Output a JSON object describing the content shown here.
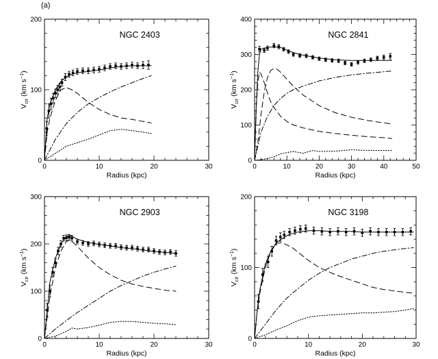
{
  "figure_label": "(a)",
  "colors": {
    "ink": "#000000",
    "background": "#ffffff"
  },
  "chart_data": [
    {
      "type": "line",
      "title": "NGC 2403",
      "xlabel": "Radius  (kpc)",
      "ylabel": "V",
      "ylabel_sub": "cir",
      "ylabel_unit": "(km s",
      "ylabel_sup": "−1",
      "ylabel_close": ")",
      "xlim": [
        0,
        30
      ],
      "ylim": [
        0,
        200
      ],
      "xticks": [
        0,
        10,
        20,
        30
      ],
      "yticks": [
        0,
        100,
        200
      ],
      "observed": {
        "x": [
          0.4,
          0.8,
          1.2,
          1.6,
          2.0,
          2.4,
          2.8,
          3.2,
          3.8,
          4.5,
          5.2,
          6.0,
          7.0,
          8.0,
          9.0,
          10.0,
          11.0,
          12.0,
          13.0,
          14.0,
          15.0,
          16.0,
          17.0,
          18.0,
          19.0
        ],
        "y": [
          45,
          70,
          80,
          88,
          95,
          100,
          104,
          110,
          118,
          122,
          124,
          126,
          127,
          127,
          128,
          129,
          131,
          133,
          134,
          133,
          134,
          135,
          134,
          135,
          135
        ],
        "err": [
          10,
          10,
          8,
          7,
          6,
          6,
          5,
          5,
          5,
          4,
          4,
          4,
          4,
          4,
          4,
          4,
          4,
          4,
          4,
          4,
          4,
          4,
          4,
          5,
          6
        ]
      },
      "series": [
        {
          "style": "solid",
          "x": [
            0,
            0.5,
            1,
            2,
            3,
            4,
            5,
            6,
            8,
            10,
            12,
            14,
            16,
            18,
            19.5
          ],
          "y": [
            0,
            60,
            80,
            100,
            112,
            118,
            122,
            124,
            126,
            128,
            131,
            133,
            134,
            134,
            134
          ]
        },
        {
          "style": "dashed",
          "x": [
            0,
            0.5,
            1,
            2,
            3,
            4,
            5,
            6,
            8,
            10,
            12,
            14,
            16,
            18,
            19.5
          ],
          "y": [
            0,
            40,
            60,
            85,
            100,
            103,
            100,
            95,
            82,
            72,
            65,
            60,
            58,
            55,
            53
          ]
        },
        {
          "style": "dashdot",
          "x": [
            0,
            1,
            2,
            4,
            6,
            8,
            10,
            12,
            14,
            16,
            18,
            19.5
          ],
          "y": [
            0,
            15,
            30,
            52,
            68,
            80,
            89,
            97,
            104,
            110,
            116,
            120
          ]
        },
        {
          "style": "dotted",
          "x": [
            0,
            1,
            2,
            3,
            4,
            6,
            8,
            10,
            12,
            14,
            16,
            18,
            19.5
          ],
          "y": [
            0,
            5,
            10,
            15,
            20,
            25,
            30,
            36,
            42,
            44,
            42,
            40,
            38
          ]
        }
      ]
    },
    {
      "type": "line",
      "title": "NGC 2841",
      "xlabel": "Radius  (kpc)",
      "ylabel": "V",
      "ylabel_sub": "cir",
      "ylabel_unit": "(km s",
      "ylabel_sup": "−1",
      "ylabel_close": ")",
      "xlim": [
        0,
        50
      ],
      "ylim": [
        0,
        400
      ],
      "xticks": [
        0,
        10,
        20,
        30,
        40,
        50
      ],
      "yticks": [
        0,
        100,
        200,
        300,
        400
      ],
      "observed": {
        "x": [
          1.5,
          3,
          4,
          6,
          7.5,
          9,
          10.5,
          12,
          14,
          16,
          18,
          20,
          22,
          24,
          26,
          28,
          30,
          32,
          34,
          36,
          38,
          40,
          42
        ],
        "y": [
          315,
          312,
          318,
          325,
          322,
          315,
          308,
          300,
          297,
          296,
          292,
          288,
          285,
          283,
          282,
          276,
          272,
          278,
          282,
          285,
          290,
          292,
          295
        ],
        "err": [
          8,
          6,
          6,
          6,
          6,
          5,
          5,
          5,
          5,
          5,
          5,
          5,
          5,
          5,
          5,
          5,
          5,
          5,
          5,
          5,
          5,
          6,
          8
        ]
      },
      "series": [
        {
          "style": "solid",
          "x": [
            0,
            0.5,
            1,
            1.5,
            2,
            3,
            4,
            6,
            8,
            10,
            12,
            15,
            20,
            25,
            30,
            35,
            40,
            42.5
          ],
          "y": [
            0,
            150,
            250,
            300,
            315,
            318,
            320,
            322,
            320,
            312,
            305,
            298,
            290,
            285,
            283,
            283,
            283,
            283
          ]
        },
        {
          "style": "dashed",
          "x": [
            0,
            0.5,
            1,
            1.5,
            2,
            3,
            4,
            5,
            6,
            8,
            10,
            12,
            15,
            20,
            25,
            30,
            35,
            40,
            42.5
          ],
          "y": [
            0,
            150,
            220,
            250,
            245,
            220,
            190,
            165,
            150,
            125,
            110,
            100,
            92,
            82,
            76,
            71,
            67,
            64,
            62
          ]
        },
        {
          "style": "dashed",
          "x": [
            0,
            1,
            2,
            3,
            4,
            5,
            6,
            7,
            8,
            10,
            12,
            15,
            20,
            25,
            30,
            35,
            40,
            42.5
          ],
          "y": [
            0,
            50,
            130,
            195,
            235,
            255,
            260,
            258,
            250,
            230,
            210,
            185,
            155,
            135,
            122,
            113,
            106,
            103
          ]
        },
        {
          "style": "dashdot",
          "x": [
            0,
            1,
            2,
            4,
            6,
            8,
            10,
            12,
            15,
            20,
            25,
            30,
            35,
            40,
            42.5
          ],
          "y": [
            0,
            40,
            80,
            125,
            155,
            175,
            190,
            200,
            210,
            225,
            235,
            242,
            247,
            251,
            253
          ]
        },
        {
          "style": "dotted",
          "x": [
            0,
            2,
            4,
            6,
            8,
            10,
            12,
            15,
            18,
            20,
            25,
            30,
            35,
            40,
            42.5
          ],
          "y": [
            0,
            2,
            5,
            10,
            18,
            22,
            25,
            20,
            28,
            25,
            26,
            30,
            28,
            28,
            28
          ]
        }
      ]
    },
    {
      "type": "line",
      "title": "NGC 2903",
      "xlabel": "Radius  (kpc)",
      "ylabel": "V",
      "ylabel_sub": "cir",
      "ylabel_unit": "(km s",
      "ylabel_sup": "−1",
      "ylabel_close": ")",
      "xlim": [
        0,
        30
      ],
      "ylim": [
        0,
        300
      ],
      "xticks": [
        0,
        10,
        20,
        30
      ],
      "yticks": [
        0,
        100,
        200,
        300
      ],
      "observed": {
        "x": [
          0.5,
          1,
          1.5,
          2,
          2.5,
          3,
          3.5,
          4,
          4.5,
          5,
          6,
          7,
          8,
          9,
          10,
          11,
          12,
          13,
          14,
          15,
          16,
          17,
          18,
          19,
          20,
          21,
          22,
          23,
          24
        ],
        "y": [
          60,
          100,
          140,
          160,
          185,
          200,
          212,
          213,
          214,
          212,
          205,
          202,
          200,
          201,
          199,
          197,
          196,
          196,
          193,
          192,
          192,
          190,
          188,
          188,
          185,
          183,
          182,
          183,
          180
        ],
        "err": [
          14,
          12,
          10,
          9,
          8,
          7,
          6,
          6,
          6,
          6,
          5,
          5,
          5,
          5,
          5,
          5,
          5,
          5,
          5,
          5,
          5,
          5,
          5,
          5,
          5,
          5,
          5,
          5,
          6
        ]
      },
      "series": [
        {
          "style": "solid",
          "x": [
            0,
            1,
            2,
            3,
            4,
            4.5,
            5,
            6,
            8,
            10,
            12,
            14,
            16,
            18,
            20,
            22,
            24
          ],
          "y": [
            0,
            120,
            170,
            200,
            215,
            218,
            216,
            210,
            203,
            199,
            196,
            192,
            190,
            187,
            184,
            182,
            180
          ]
        },
        {
          "style": "dashed",
          "x": [
            0,
            1,
            2,
            3,
            4,
            4.5,
            5,
            6,
            8,
            10,
            12,
            14,
            16,
            18,
            20,
            22,
            24
          ],
          "y": [
            0,
            90,
            150,
            185,
            205,
            208,
            205,
            195,
            170,
            150,
            135,
            123,
            115,
            110,
            106,
            102,
            100
          ]
        },
        {
          "style": "dashdot",
          "x": [
            0,
            1,
            2,
            4,
            6,
            8,
            10,
            12,
            14,
            16,
            18,
            20,
            22,
            24
          ],
          "y": [
            0,
            10,
            20,
            38,
            55,
            70,
            85,
            100,
            112,
            122,
            132,
            140,
            147,
            153
          ]
        },
        {
          "style": "dotted",
          "x": [
            0,
            2,
            4,
            5,
            6,
            8,
            10,
            12,
            14,
            16,
            18,
            20,
            22,
            24
          ],
          "y": [
            0,
            5,
            15,
            22,
            20,
            23,
            28,
            34,
            36,
            36,
            34,
            32,
            31,
            29
          ]
        }
      ]
    },
    {
      "type": "line",
      "title": "NGC 3198",
      "xlabel": "Radius  (kpc)",
      "ylabel": "V",
      "ylabel_sub": "cir",
      "ylabel_unit": "(km s",
      "ylabel_sup": "−1",
      "ylabel_close": ")",
      "xlim": [
        0,
        30
      ],
      "ylim": [
        0,
        200
      ],
      "xticks": [
        0,
        10,
        20,
        30
      ],
      "yticks": [
        0,
        100,
        200
      ],
      "observed": {
        "x": [
          0.7,
          1.5,
          2.5,
          3.2,
          4,
          4.8,
          5.5,
          6.5,
          7.5,
          8.5,
          9.5,
          11,
          12.5,
          14,
          15.5,
          17,
          18.5,
          20,
          21.5,
          23,
          24.5,
          26,
          27.5,
          29
        ],
        "y": [
          52,
          90,
          108,
          123,
          138,
          143,
          146,
          150,
          152,
          154,
          155,
          152,
          151,
          150,
          151,
          150,
          151,
          149,
          151,
          150,
          150,
          150,
          150,
          151
        ],
        "err": [
          10,
          9,
          8,
          7,
          6,
          6,
          5,
          5,
          5,
          5,
          5,
          5,
          5,
          5,
          5,
          5,
          5,
          5,
          5,
          5,
          5,
          5,
          5,
          5
        ]
      },
      "series": [
        {
          "style": "solid",
          "x": [
            0,
            0.5,
            1,
            2,
            3,
            4,
            5,
            6,
            7,
            8,
            10,
            12,
            14,
            16,
            18,
            20,
            22,
            24,
            26,
            28,
            29.5
          ],
          "y": [
            0,
            40,
            70,
            105,
            123,
            135,
            140,
            145,
            148,
            150,
            152,
            152,
            151,
            151,
            151,
            150,
            150,
            150,
            150,
            150,
            150
          ]
        },
        {
          "style": "dashed",
          "x": [
            0,
            0.5,
            1,
            2,
            3,
            4,
            5,
            6,
            7,
            8,
            10,
            12,
            15,
            18,
            20,
            22,
            24,
            26,
            28,
            29.5
          ],
          "y": [
            0,
            40,
            65,
            100,
            122,
            134,
            135,
            132,
            128,
            122,
            110,
            100,
            90,
            82,
            77,
            72,
            69,
            67,
            65,
            64
          ]
        },
        {
          "style": "dashdot",
          "x": [
            0,
            1,
            2,
            4,
            6,
            8,
            10,
            12,
            14,
            16,
            18,
            20,
            22,
            24,
            26,
            28,
            29.5
          ],
          "y": [
            0,
            10,
            20,
            40,
            57,
            70,
            82,
            92,
            100,
            106,
            112,
            116,
            120,
            123,
            125,
            127,
            128
          ]
        },
        {
          "style": "dotted",
          "x": [
            0,
            2,
            4,
            6,
            8,
            10,
            12,
            14,
            16,
            18,
            20,
            22,
            24,
            26,
            28,
            29.5
          ],
          "y": [
            0,
            5,
            12,
            18,
            25,
            30,
            32,
            33,
            34,
            35,
            36,
            36,
            37,
            38,
            40,
            42
          ]
        }
      ]
    }
  ]
}
